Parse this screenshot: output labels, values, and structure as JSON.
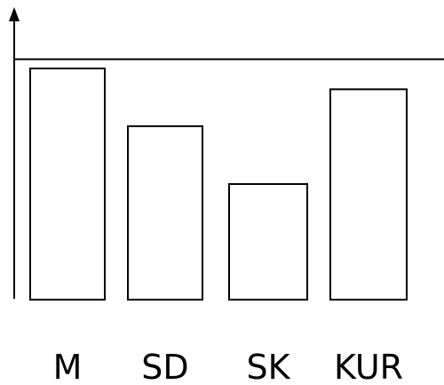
{
  "chart_data": {
    "type": "bar",
    "categories": [
      "M",
      "SD",
      "SK",
      "KUR"
    ],
    "values": [
      100,
      75,
      50,
      91
    ],
    "ylim": [
      0,
      104
    ],
    "reference_line": 104,
    "title": "",
    "xlabel": "",
    "ylabel": "",
    "grid": false,
    "legend": "none",
    "colors": {
      "stroke": "#000000",
      "background": "#ffffff"
    }
  }
}
